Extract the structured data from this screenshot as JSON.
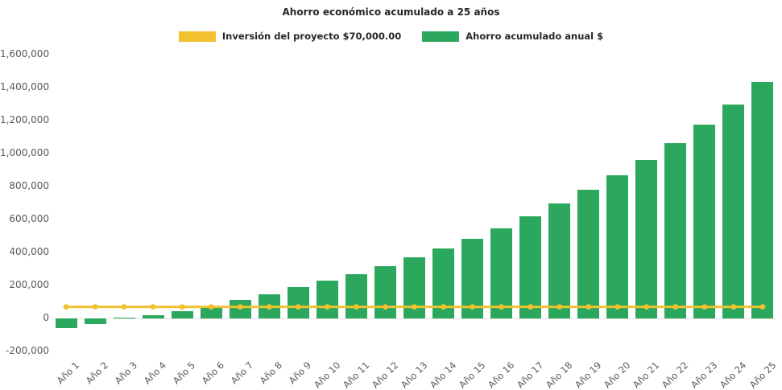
{
  "colors": {
    "investment_line": "#F2C12E",
    "savings_bar": "#2BA85D",
    "title_text": "#262626",
    "axis_text": "#595959",
    "background": "#FFFFFF"
  },
  "chart_data": {
    "type": "bar",
    "title": "Ahorro económico acumulado a 25 años",
    "xlabel": "",
    "ylabel": "",
    "grid": false,
    "legend_position": "top",
    "ylim": [
      -200000,
      1600000
    ],
    "ytick_step": 200000,
    "categories": [
      "Año 1",
      "Año 2",
      "Año 3",
      "Año 4",
      "Año 5",
      "Año 6",
      "Año 7",
      "Año 8",
      "Año 9",
      "Año 10",
      "Año 11",
      "Año 12",
      "Año 13",
      "Año 14",
      "Año 15",
      "Año 16",
      "Año 17",
      "Año 18",
      "Año 19",
      "Año 20",
      "Año 21",
      "Año 22",
      "Año 23",
      "Año 24",
      "Año 25"
    ],
    "series": [
      {
        "name": "Inversión del proyecto $70,000.00",
        "type": "line",
        "color": "#F2C12E",
        "values": [
          70000,
          70000,
          70000,
          70000,
          70000,
          70000,
          70000,
          70000,
          70000,
          70000,
          70000,
          70000,
          70000,
          70000,
          70000,
          70000,
          70000,
          70000,
          70000,
          70000,
          70000,
          70000,
          70000,
          70000,
          70000
        ]
      },
      {
        "name": "Ahorro acumulado anual $",
        "type": "bar",
        "color": "#2BA85D",
        "values": [
          -60000,
          -35000,
          5000,
          20000,
          45000,
          75000,
          110000,
          148000,
          188000,
          228000,
          270000,
          318000,
          370000,
          425000,
          485000,
          548000,
          620000,
          698000,
          780000,
          868000,
          962000,
          1065000,
          1178000,
          1300000,
          1432000
        ]
      }
    ]
  }
}
